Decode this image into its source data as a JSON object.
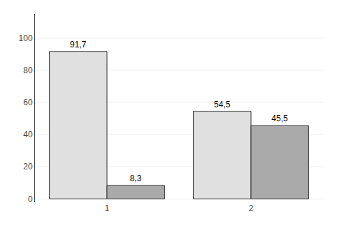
{
  "chart_data": {
    "type": "bar",
    "categories": [
      "1",
      "2"
    ],
    "series": [
      {
        "color": "#e0e0e0",
        "values": [
          91.7,
          54.5
        ],
        "value_labels": [
          "91,7",
          "54,5"
        ]
      },
      {
        "color": "#aaaaaa",
        "values": [
          8.3,
          45.5
        ],
        "value_labels": [
          "8,3",
          "45,5"
        ]
      }
    ],
    "data_labels": true,
    "ylim": [
      -2,
      115
    ],
    "yticks": [
      0,
      20,
      40,
      60,
      80,
      100
    ],
    "grid": true
  }
}
